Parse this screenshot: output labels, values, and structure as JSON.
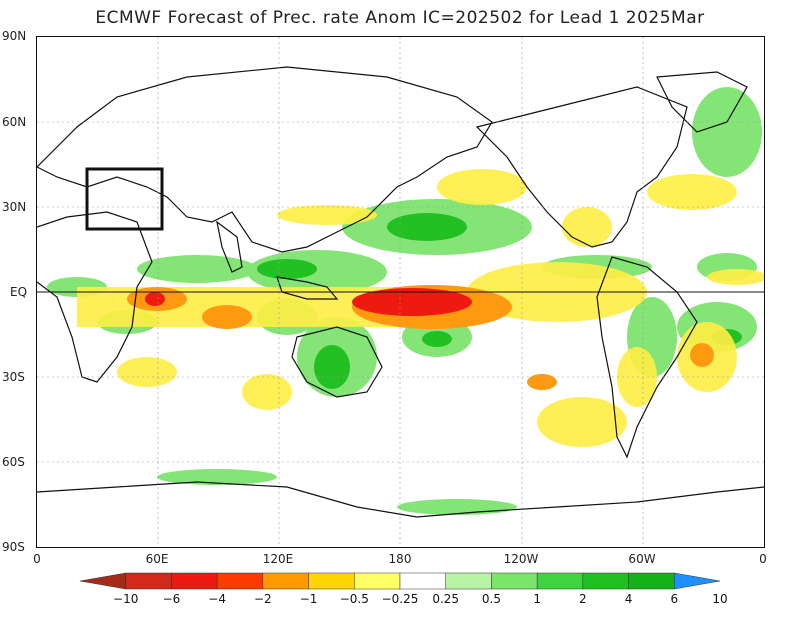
{
  "title": "ECMWF Forecast of Prec. rate Anom IC=202502 for Lead 1 2025Mar",
  "axes": {
    "lat_labels": [
      "90N",
      "60N",
      "30N",
      "EQ",
      "30S",
      "60S",
      "90S"
    ],
    "lon_labels": [
      "0",
      "60E",
      "120E",
      "180",
      "120W",
      "60W",
      "0"
    ]
  },
  "colorbar": {
    "labels": [
      "−10",
      "−6",
      "−4",
      "−2",
      "−1",
      "−0.5",
      "−0.25",
      "0.25",
      "0.5",
      "1",
      "2",
      "4",
      "6",
      "10"
    ],
    "colors": [
      "#a52a1a",
      "#d22a1a",
      "#ee1a10",
      "#ff3a00",
      "#ff9a00",
      "#ffd400",
      "#ffff66",
      "#ffffff",
      "#b7f5a5",
      "#7be76a",
      "#3fd43f",
      "#20c020",
      "#18b018",
      "#1e90ff"
    ]
  },
  "region_box": {
    "present": true
  }
}
